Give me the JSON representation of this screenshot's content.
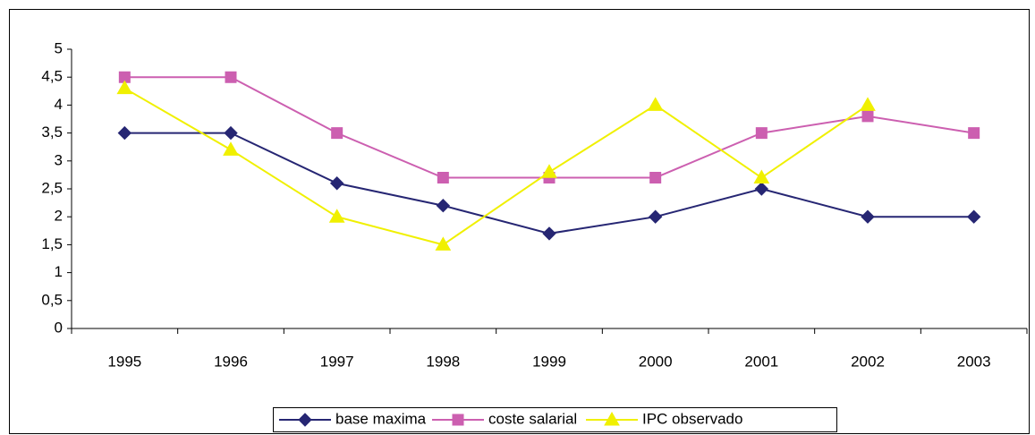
{
  "chart_data": {
    "type": "line",
    "categories": [
      "1995",
      "1996",
      "1997",
      "1998",
      "1999",
      "2000",
      "2001",
      "2002",
      "2003"
    ],
    "series": [
      {
        "name": "base maxima",
        "color": "#262673",
        "marker": "diamond",
        "values": [
          3.5,
          3.5,
          2.6,
          2.2,
          1.7,
          2.0,
          2.5,
          2.0,
          2.0
        ]
      },
      {
        "name": "coste salarial",
        "color": "#cc5fb0",
        "marker": "square",
        "values": [
          4.5,
          4.5,
          3.5,
          2.7,
          2.7,
          2.7,
          3.5,
          3.8,
          3.5
        ]
      },
      {
        "name": "IPC observado",
        "color": "#f0f000",
        "marker": "triangle",
        "values": [
          4.3,
          3.2,
          2.0,
          1.5,
          2.8,
          4.0,
          2.7,
          4.0,
          null
        ]
      }
    ],
    "ylim": [
      0,
      5
    ],
    "yticks": [
      0,
      {
        "value": 0.5,
        "label": "0,5"
      },
      1,
      {
        "value": 1.5,
        "label": "1,5"
      },
      2,
      {
        "value": 2.5,
        "label": "2,5"
      },
      3,
      {
        "value": 3.5,
        "label": "3,5"
      },
      4,
      {
        "value": 4.5,
        "label": "4,5"
      },
      5
    ],
    "grid": false,
    "legend": "bottom"
  }
}
